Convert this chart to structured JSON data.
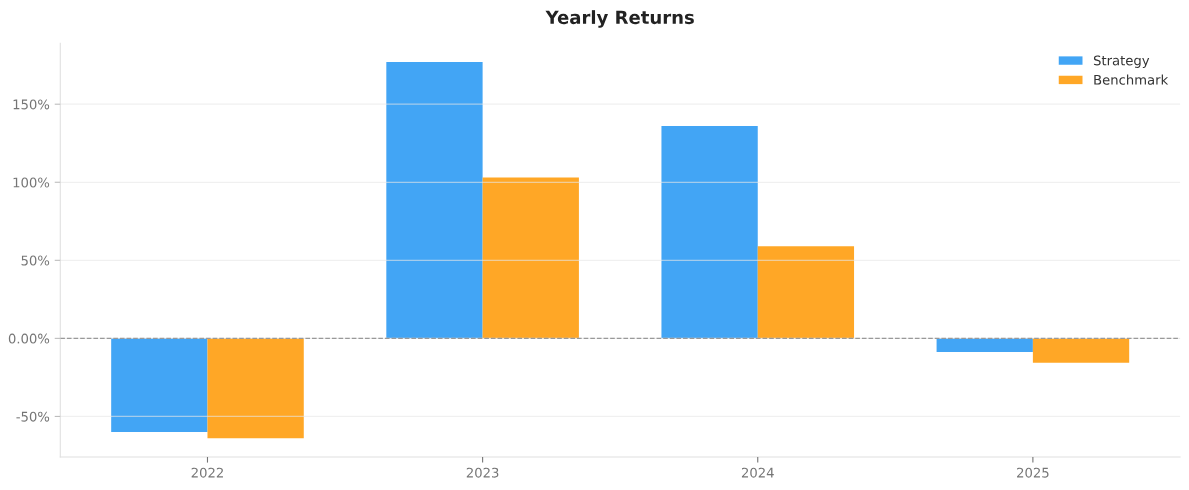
{
  "chart_data": {
    "type": "bar",
    "title": "Yearly Returns",
    "categories": [
      "2022",
      "2023",
      "2024",
      "2025"
    ],
    "series": [
      {
        "name": "Strategy",
        "color": "#42a5f5",
        "values": [
          -60,
          177,
          136,
          -8.8
        ]
      },
      {
        "name": "Benchmark",
        "color": "#ffa726",
        "values": [
          -64,
          103,
          59,
          -15.6
        ]
      }
    ],
    "ylim": [
      -76,
      189
    ],
    "yticks": [
      {
        "value": -50,
        "label": "-50%"
      },
      {
        "value": 0,
        "label": "0.00%"
      },
      {
        "value": 50,
        "label": "50%"
      },
      {
        "value": 100,
        "label": "100%"
      },
      {
        "value": 150,
        "label": "150%"
      }
    ],
    "ref_lines": [
      {
        "axis": "y",
        "value": 0,
        "label": null,
        "color": "#999999",
        "line_style": "dashed"
      }
    ],
    "grid": "y",
    "legend": "top right"
  }
}
